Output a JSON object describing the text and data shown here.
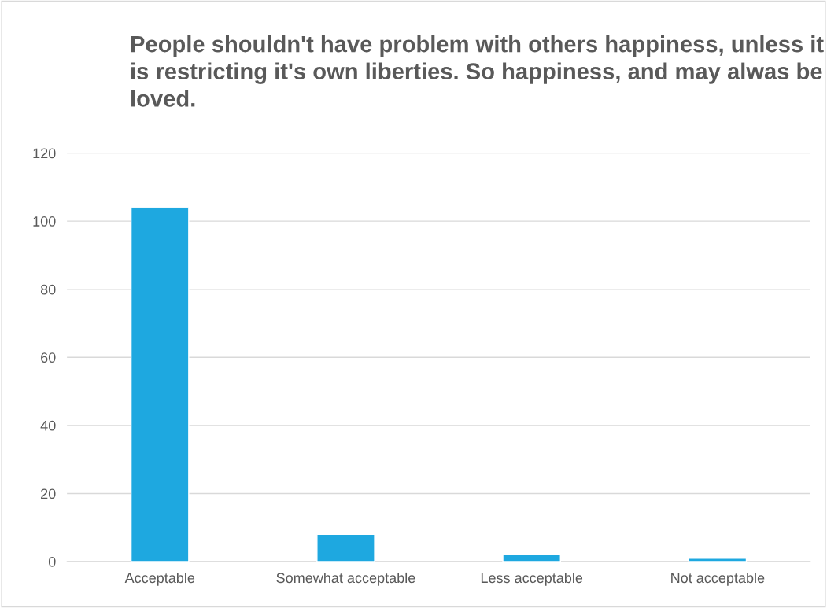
{
  "chart_data": {
    "type": "bar",
    "title": "People shouldn't have problem with others happiness, unless it is restricting it's own liberties. So happiness, and may alwas be loved.",
    "categories": [
      "Acceptable",
      "Somewhat acceptable",
      "Less acceptable",
      "Not acceptable"
    ],
    "values": [
      104,
      8,
      2,
      1
    ],
    "color": "#1ea8e0",
    "ylim": [
      0,
      120
    ],
    "yticks": [
      0,
      20,
      40,
      60,
      80,
      100,
      120
    ],
    "grid": "y",
    "legend": false
  }
}
